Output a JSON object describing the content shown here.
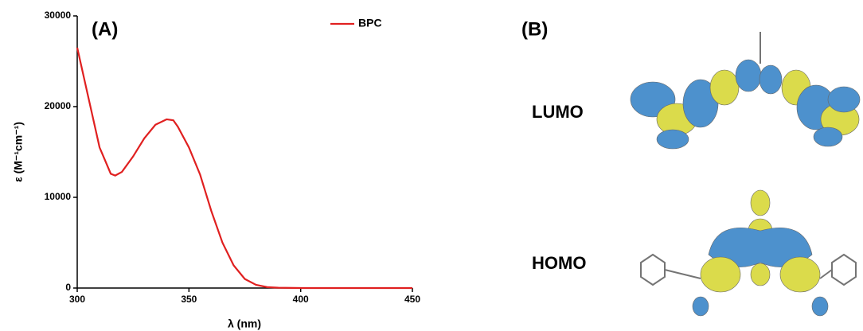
{
  "chart_data": {
    "type": "line",
    "annotations": [
      "(A)"
    ],
    "x_label": "λ (nm)",
    "y_label": "ε (M⁻¹cm⁻¹)",
    "x": [
      300,
      305,
      310,
      315,
      317,
      320,
      325,
      330,
      335,
      340,
      343,
      345,
      350,
      355,
      360,
      365,
      370,
      375,
      380,
      385,
      390,
      400,
      420,
      450
    ],
    "series": [
      {
        "name": "BPC",
        "color": "#e02020",
        "values": [
          26500,
          21000,
          15500,
          12600,
          12400,
          12800,
          14500,
          16500,
          18000,
          18600,
          18500,
          17800,
          15500,
          12500,
          8500,
          5000,
          2500,
          1000,
          350,
          100,
          30,
          0,
          0,
          0
        ]
      }
    ],
    "xlim": [
      300,
      450
    ],
    "ylim": [
      0,
      30000
    ],
    "xticks": [
      300,
      350,
      400,
      450
    ],
    "yticks": [
      0,
      10000,
      20000,
      30000
    ],
    "grid": false,
    "legend": "upper right"
  },
  "panel_b": {
    "label": "(B)",
    "orbitals": [
      "LUMO",
      "HOMO"
    ]
  }
}
